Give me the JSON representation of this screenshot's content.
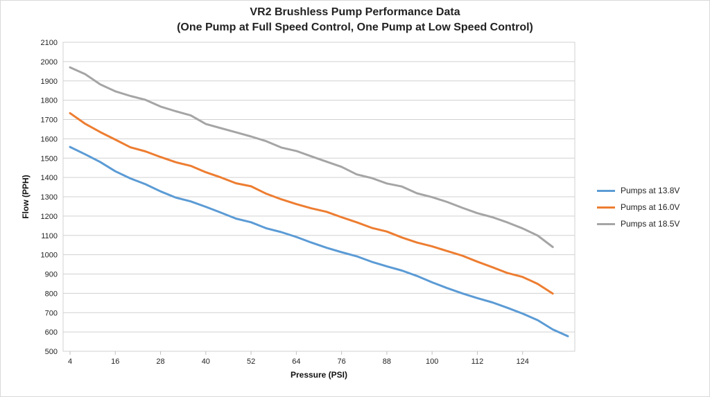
{
  "chart_data": {
    "type": "line",
    "title_line1": "VR2 Brushless Pump Performance Data",
    "title_line2": "(One Pump at Full Speed Control, One Pump at Low Speed Control)",
    "xlabel": "Pressure (PSI)",
    "ylabel": "Flow (PPH)",
    "xlim": [
      4,
      130
    ],
    "ylim": [
      500,
      2100
    ],
    "yticks": [
      500,
      600,
      700,
      800,
      900,
      1000,
      1100,
      1200,
      1300,
      1400,
      1500,
      1600,
      1700,
      1800,
      1900,
      2000,
      2100
    ],
    "xticks": [
      4,
      16,
      28,
      40,
      52,
      64,
      76,
      88,
      100,
      112,
      124
    ],
    "grid": true,
    "legend_position": "right",
    "series": [
      {
        "name": "Pumps at 13.8V",
        "color": "#5b9bd5",
        "x": [
          4,
          8,
          12,
          16,
          20,
          24,
          28,
          32,
          36,
          40,
          44,
          48,
          52,
          56,
          60,
          64,
          68,
          72,
          76,
          80,
          84,
          88,
          92,
          96,
          100,
          104,
          108,
          112,
          116,
          120,
          124,
          128,
          132,
          136
        ],
        "values": [
          1558,
          1520,
          1480,
          1432,
          1395,
          1365,
          1328,
          1296,
          1276,
          1248,
          1218,
          1187,
          1168,
          1137,
          1117,
          1092,
          1063,
          1036,
          1013,
          992,
          963,
          940,
          918,
          890,
          857,
          827,
          800,
          775,
          753,
          725,
          695,
          661,
          613,
          578
        ]
      },
      {
        "name": "Pumps at 16.0V",
        "color": "#ed7d31",
        "x": [
          4,
          8,
          12,
          16,
          20,
          24,
          28,
          32,
          36,
          40,
          44,
          48,
          52,
          56,
          60,
          64,
          68,
          72,
          76,
          80,
          84,
          88,
          92,
          96,
          100,
          104,
          108,
          112,
          116,
          120,
          124,
          128,
          132
        ],
        "values": [
          1733,
          1678,
          1635,
          1596,
          1556,
          1535,
          1506,
          1479,
          1460,
          1427,
          1400,
          1370,
          1354,
          1316,
          1287,
          1262,
          1240,
          1222,
          1194,
          1168,
          1139,
          1120,
          1089,
          1063,
          1043,
          1019,
          995,
          964,
          935,
          905,
          885,
          849,
          799
        ]
      },
      {
        "name": "Pumps at 18.5V",
        "color": "#a5a5a5",
        "x": [
          4,
          8,
          12,
          16,
          20,
          24,
          28,
          32,
          36,
          40,
          44,
          48,
          52,
          56,
          60,
          64,
          68,
          72,
          76,
          80,
          84,
          88,
          92,
          96,
          100,
          104,
          108,
          112,
          116,
          120,
          124,
          128,
          132
        ],
        "values": [
          1970,
          1935,
          1882,
          1846,
          1822,
          1802,
          1767,
          1743,
          1721,
          1677,
          1655,
          1634,
          1612,
          1588,
          1555,
          1537,
          1509,
          1482,
          1455,
          1416,
          1397,
          1369,
          1353,
          1318,
          1298,
          1273,
          1243,
          1215,
          1194,
          1167,
          1136,
          1099,
          1040
        ]
      }
    ]
  }
}
